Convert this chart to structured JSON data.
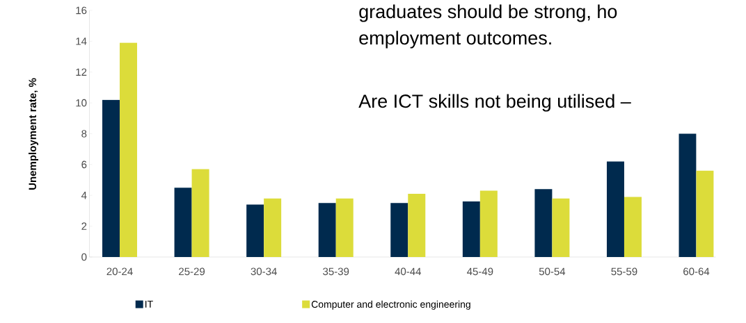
{
  "chart_data": {
    "type": "bar",
    "ylabel": "Unemployment rate, %",
    "categories": [
      "20-24",
      "25-29",
      "30-34",
      "35-39",
      "40-44",
      "45-49",
      "50-54",
      "55-59",
      "60-64"
    ],
    "series": [
      {
        "name": "IT",
        "color": "#002a4e",
        "values": [
          10.2,
          4.5,
          3.4,
          3.5,
          3.5,
          3.6,
          4.4,
          6.2,
          8.0
        ]
      },
      {
        "name": "Computer and electronic engineering",
        "color": "#dcdc3a",
        "values": [
          13.9,
          5.7,
          3.8,
          3.8,
          4.1,
          4.3,
          3.8,
          3.9,
          5.6
        ]
      }
    ],
    "ylim": [
      0,
      16
    ],
    "yticks": [
      0,
      2,
      4,
      6,
      8,
      10,
      12,
      14,
      16
    ],
    "grid": false,
    "legend": "bottom left",
    "annotations": [
      "graduates should be strong, ho",
      "employment outcomes.",
      "Are ICT skills not being utilised –"
    ]
  }
}
